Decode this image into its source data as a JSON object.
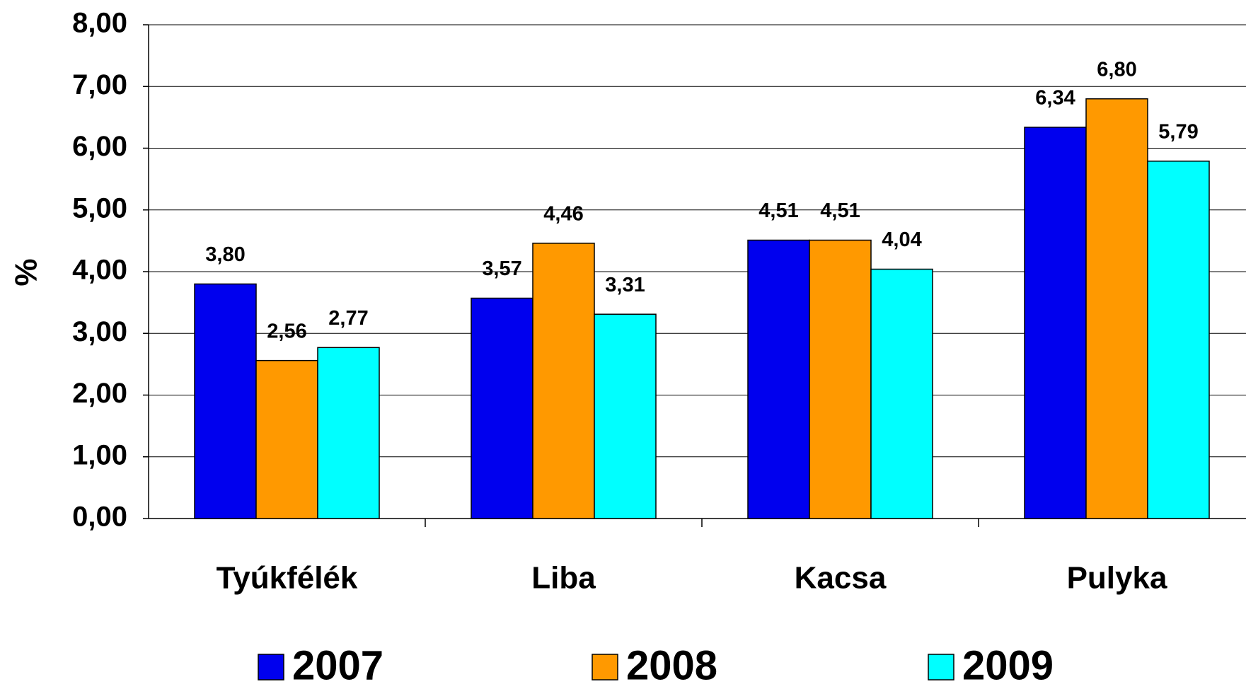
{
  "chart_data": {
    "type": "bar",
    "y_label": "%",
    "categories": [
      "Tyúkfélék",
      "Liba",
      "Kacsa",
      "Pulyka"
    ],
    "series": [
      {
        "name": "2007",
        "color": "#0000ee",
        "values": [
          3.8,
          3.57,
          4.51,
          6.34
        ],
        "value_labels": [
          "3,80",
          "3,57",
          "4,51",
          "6,34"
        ]
      },
      {
        "name": "2008",
        "color": "#ff9900",
        "values": [
          2.56,
          4.46,
          4.51,
          6.8
        ],
        "value_labels": [
          "2,56",
          "4,46",
          "4,51",
          "6,80"
        ]
      },
      {
        "name": "2009",
        "color": "#00ffff",
        "values": [
          2.77,
          3.31,
          4.04,
          5.79
        ],
        "value_labels": [
          "2,77",
          "3,31",
          "4,04",
          "5,79"
        ]
      }
    ],
    "ylim": [
      0,
      8
    ],
    "yticks": [
      {
        "value": 0,
        "label": "0,00"
      },
      {
        "value": 1,
        "label": "1,00"
      },
      {
        "value": 2,
        "label": "2,00"
      },
      {
        "value": 3,
        "label": "3,00"
      },
      {
        "value": 4,
        "label": "4,00"
      },
      {
        "value": 5,
        "label": "5,00"
      },
      {
        "value": 6,
        "label": "6,00"
      },
      {
        "value": 7,
        "label": "7,00"
      },
      {
        "value": 8,
        "label": "8,00"
      }
    ],
    "grid": true,
    "legend": "bottom"
  }
}
